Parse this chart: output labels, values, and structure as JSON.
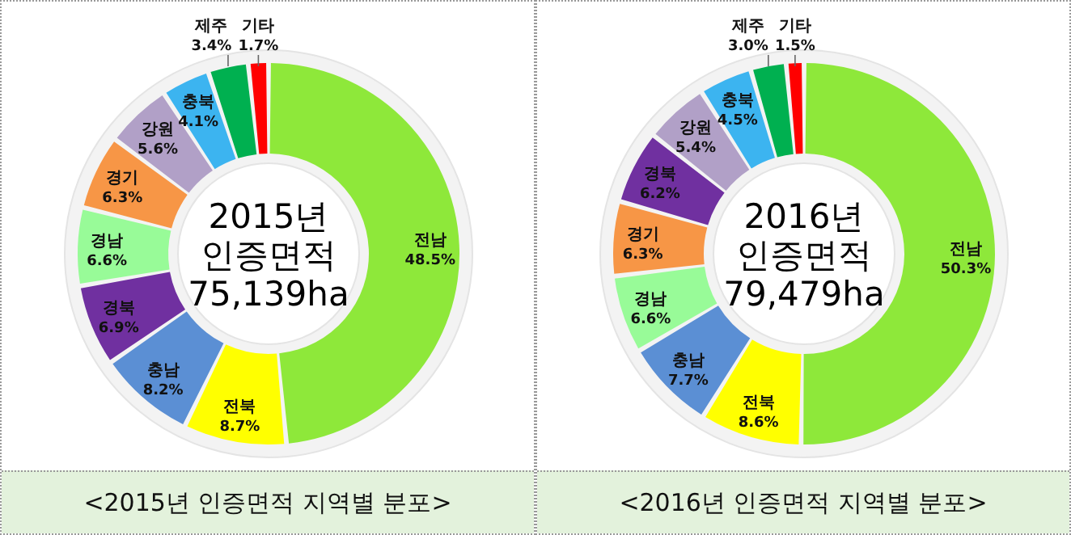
{
  "chart_data": [
    {
      "type": "donut",
      "title": "<2015년 인증면적 지역별 분포>",
      "subtitle": "2015년\n인증면적\n75,139ha",
      "categories": [
        "전남",
        "전북",
        "충남",
        "경북",
        "경남",
        "경기",
        "강원",
        "충북",
        "제주",
        "기타"
      ],
      "values": [
        48.5,
        8.7,
        8.2,
        6.9,
        6.6,
        6.3,
        5.6,
        4.1,
        3.4,
        1.7
      ],
      "value_labels": [
        "48.5%",
        "8.7%",
        "8.2%",
        "6.9%",
        "6.6%",
        "6.3%",
        "5.6%",
        "4.1%",
        "3.4%",
        "1.7%"
      ],
      "colors": [
        "#8ee83a",
        "#ffff00",
        "#5b8fd4",
        "#7030a0",
        "#98fb98",
        "#f79646",
        "#b1a0c7",
        "#3cb4f0",
        "#00b050",
        "#ff0000"
      ]
    },
    {
      "type": "donut",
      "title": "<2016년 인증면적 지역별 분포>",
      "subtitle": "2016년\n인증면적\n79,479ha",
      "categories": [
        "전남",
        "전북",
        "충남",
        "경남",
        "경기",
        "경북",
        "강원",
        "충북",
        "제주",
        "기타"
      ],
      "values": [
        50.3,
        8.6,
        7.7,
        6.6,
        6.3,
        6.2,
        5.4,
        4.5,
        3.0,
        1.5
      ],
      "value_labels": [
        "50.3%",
        "8.6%",
        "7.7%",
        "6.6%",
        "6.3%",
        "6.2%",
        "5.4%",
        "4.5%",
        "3.0%",
        "1.5%"
      ],
      "colors": [
        "#8ee83a",
        "#ffff00",
        "#5b8fd4",
        "#98fb98",
        "#f79646",
        "#7030a0",
        "#b1a0c7",
        "#3cb4f0",
        "#00b050",
        "#ff0000"
      ]
    }
  ]
}
